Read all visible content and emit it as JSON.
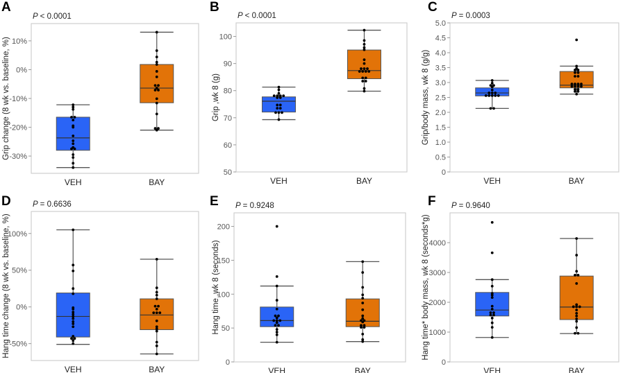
{
  "colors": {
    "VEH": "#2a64f6",
    "BAY": "#e27308",
    "frame": "#cfcfcf",
    "whisker": "#555555"
  },
  "chart_data": [
    {
      "type": "box",
      "panel": "A",
      "p_prefix": "P",
      "p_value": "< 0.0001",
      "ylabel": "Grip change (8 wk vs. baseline, %)",
      "ylim": [
        -36,
        16
      ],
      "yticks": [
        {
          "v": 10,
          "label": "10%"
        },
        {
          "v": 0,
          "label": "0%"
        },
        {
          "v": -10,
          "label": "-10%"
        },
        {
          "v": -20,
          "label": "-20%"
        },
        {
          "v": -30,
          "label": "-30%"
        }
      ],
      "categories": [
        "VEH",
        "BAY"
      ],
      "groups": [
        {
          "name": "VEH",
          "whisker_low": -34,
          "q1": -28,
          "median": -23.7,
          "q3": -16.5,
          "whisker_high": -12.2,
          "points": [
            -12.2,
            -13,
            -13.8,
            -16.5,
            -16.5,
            -17.5,
            -19.5,
            -20,
            -23,
            -24.7,
            -25.7,
            -27,
            -27.5,
            -27.5,
            -29.5,
            -30.5,
            -32.5,
            -34
          ]
        },
        {
          "name": "BAY",
          "whisker_low": -21,
          "q1": -11.5,
          "median": -6.4,
          "q3": 1.8,
          "whisker_high": 13,
          "points": [
            13,
            6.6,
            4.4,
            2.6,
            1.8,
            -0.6,
            -2.5,
            -5.5,
            -5.5,
            -6.4,
            -7.1,
            -7.1,
            -10.1,
            -11.6,
            -15.4,
            -20.4,
            -20.4,
            -21
          ]
        }
      ]
    },
    {
      "type": "box",
      "panel": "B",
      "p_prefix": "P",
      "p_value": "< 0.0001",
      "ylabel": "Grip ,wk 8 (g)",
      "ylim": [
        50,
        105
      ],
      "yticks": [
        {
          "v": 50,
          "label": "50"
        },
        {
          "v": 60,
          "label": "60"
        },
        {
          "v": 70,
          "label": "70"
        },
        {
          "v": 80,
          "label": "80"
        },
        {
          "v": 90,
          "label": "90"
        },
        {
          "v": 100,
          "label": "100"
        }
      ],
      "categories": [
        "VEH",
        "BAY"
      ],
      "groups": [
        {
          "name": "VEH",
          "whisker_low": 69.3,
          "q1": 72.1,
          "median": 76.1,
          "q3": 77.7,
          "whisker_high": 81.3,
          "points": [
            81.3,
            80.3,
            79,
            78.1,
            78.1,
            78.1,
            78.1,
            77.4,
            77.4,
            74.7,
            74.7,
            73.5,
            73.5,
            71.9,
            71.9,
            71.9,
            69.3
          ]
        },
        {
          "name": "BAY",
          "whisker_low": 79.8,
          "q1": 84.4,
          "median": 87.4,
          "q3": 95,
          "whisker_high": 102.3,
          "points": [
            102.3,
            98.5,
            97.1,
            95.9,
            95.1,
            91.4,
            90,
            88.1,
            88.1,
            88.1,
            87.1,
            87.1,
            87.1,
            87.1,
            84.7,
            84.7,
            83.5,
            83.5,
            80.8,
            79.8
          ]
        }
      ]
    },
    {
      "type": "box",
      "panel": "C",
      "p_prefix": "P",
      "p_value": "= 0.0003",
      "ylabel": "Grip/body mass, wk 8 (g/g)",
      "ylim": [
        0,
        5
      ],
      "yticks": [
        {
          "v": 0,
          "label": "0"
        },
        {
          "v": 0.5,
          "label": "0.5"
        },
        {
          "v": 1,
          "label": "1.0"
        },
        {
          "v": 1.5,
          "label": "1.5"
        },
        {
          "v": 2,
          "label": "2.0"
        },
        {
          "v": 2.5,
          "label": "2.5"
        },
        {
          "v": 3,
          "label": "3.0"
        },
        {
          "v": 3.5,
          "label": "3.5"
        },
        {
          "v": 4,
          "label": "4.0"
        },
        {
          "v": 4.5,
          "label": "4.5"
        },
        {
          "v": 5,
          "label": "5.0"
        }
      ],
      "categories": [
        "VEH",
        "BAY"
      ],
      "groups": [
        {
          "name": "VEH",
          "whisker_low": 2.13,
          "q1": 2.55,
          "median": 2.65,
          "q3": 2.82,
          "whisker_high": 3.07,
          "points": [
            3.07,
            2.98,
            2.9,
            2.9,
            2.85,
            2.75,
            2.65,
            2.65,
            2.65,
            2.56,
            2.56,
            2.56,
            2.56,
            2.56,
            2.13,
            2.13
          ]
        },
        {
          "name": "BAY",
          "whisker_low": 2.61,
          "q1": 2.82,
          "median": 2.91,
          "q3": 3.37,
          "whisker_high": 3.55,
          "points": [
            4.43,
            3.55,
            3.47,
            3.42,
            3.42,
            3.33,
            3.33,
            3.21,
            3.21,
            2.95,
            2.95,
            2.95,
            2.95,
            2.87,
            2.87,
            2.87,
            2.87,
            2.77,
            2.77,
            2.7,
            2.7,
            2.61
          ]
        }
      ]
    },
    {
      "type": "box",
      "panel": "D",
      "p_prefix": "P",
      "p_value": "= 0.6636",
      "ylabel": "Hang time change (8 wk vs. baseline, %)",
      "ylim": [
        -73,
        130
      ],
      "yticks": [
        {
          "v": 100,
          "label": "100%"
        },
        {
          "v": 50,
          "label": "50%"
        },
        {
          "v": 0,
          "label": "0%"
        },
        {
          "v": -50,
          "label": "-50%"
        }
      ],
      "categories": [
        "VEH",
        "BAY"
      ],
      "groups": [
        {
          "name": "VEH",
          "whisker_low": -51,
          "q1": -41,
          "median": -13,
          "q3": 19,
          "whisker_high": 105,
          "points": [
            105,
            57,
            49,
            25,
            18,
            -1,
            -3,
            -7,
            -10,
            -13,
            -16,
            -20,
            -23,
            -27,
            -40,
            -43,
            -43,
            -46,
            -50
          ]
        },
        {
          "name": "BAY",
          "whisker_low": -64,
          "q1": -31,
          "median": -11,
          "q3": 11,
          "whisker_high": 65,
          "points": [
            65,
            26,
            20,
            16,
            11,
            1,
            1,
            -3,
            -8,
            -8,
            -8,
            -19,
            -27,
            -30,
            -33,
            -48,
            -53,
            -64
          ]
        }
      ]
    },
    {
      "type": "box",
      "panel": "E",
      "p_prefix": "P",
      "p_value": "= 0.9248",
      "ylabel": "Hang time ,wk 8 (seconds)",
      "ylim": [
        0,
        220
      ],
      "yticks": [
        {
          "v": 0,
          "label": "0"
        },
        {
          "v": 50,
          "label": "50"
        },
        {
          "v": 100,
          "label": "100"
        },
        {
          "v": 150,
          "label": "150"
        },
        {
          "v": 200,
          "label": "200"
        }
      ],
      "categories": [
        "VEH",
        "BAY"
      ],
      "groups": [
        {
          "name": "VEH",
          "whisker_low": 29,
          "q1": 52,
          "median": 61,
          "q3": 81,
          "whisker_high": 112,
          "points": [
            200,
            126,
            112,
            91,
            78,
            68,
            68,
            65,
            61,
            61,
            61,
            58,
            54,
            54,
            48,
            44,
            40,
            29
          ]
        },
        {
          "name": "BAY",
          "whisker_low": 30,
          "q1": 52,
          "median": 60,
          "q3": 93,
          "whisker_high": 148,
          "points": [
            148,
            132,
            110,
            99,
            94,
            87,
            77,
            68,
            64,
            61,
            61,
            59,
            54,
            54,
            51,
            51,
            41,
            33,
            30
          ]
        }
      ]
    },
    {
      "type": "box",
      "panel": "F",
      "p_prefix": "P",
      "p_value": "= 0.9640",
      "ylabel": "Hang time* body mass, wk 8 (seconds*g)",
      "ylim": [
        0,
        5000
      ],
      "yticks": [
        {
          "v": 0,
          "label": "0"
        },
        {
          "v": 1000,
          "label": "1000"
        },
        {
          "v": 2000,
          "label": "2000"
        },
        {
          "v": 3000,
          "label": "3000"
        },
        {
          "v": 4000,
          "label": "4000"
        }
      ],
      "categories": [
        "VEH",
        "BAY"
      ],
      "groups": [
        {
          "name": "VEH",
          "whisker_low": 820,
          "q1": 1540,
          "median": 1740,
          "q3": 2330,
          "whisker_high": 2760,
          "points": [
            4680,
            3660,
            2760,
            2540,
            2300,
            2240,
            2160,
            1870,
            1770,
            1650,
            1650,
            1570,
            1570,
            1470,
            1310,
            1160,
            820
          ]
        },
        {
          "name": "BAY",
          "whisker_low": 950,
          "q1": 1420,
          "median": 1840,
          "q3": 2880,
          "whisker_high": 4140,
          "points": [
            4140,
            3580,
            3040,
            2910,
            2910,
            2630,
            1920,
            1850,
            1850,
            1850,
            1740,
            1630,
            1540,
            1440,
            1360,
            1150,
            960,
            960
          ]
        }
      ]
    }
  ]
}
